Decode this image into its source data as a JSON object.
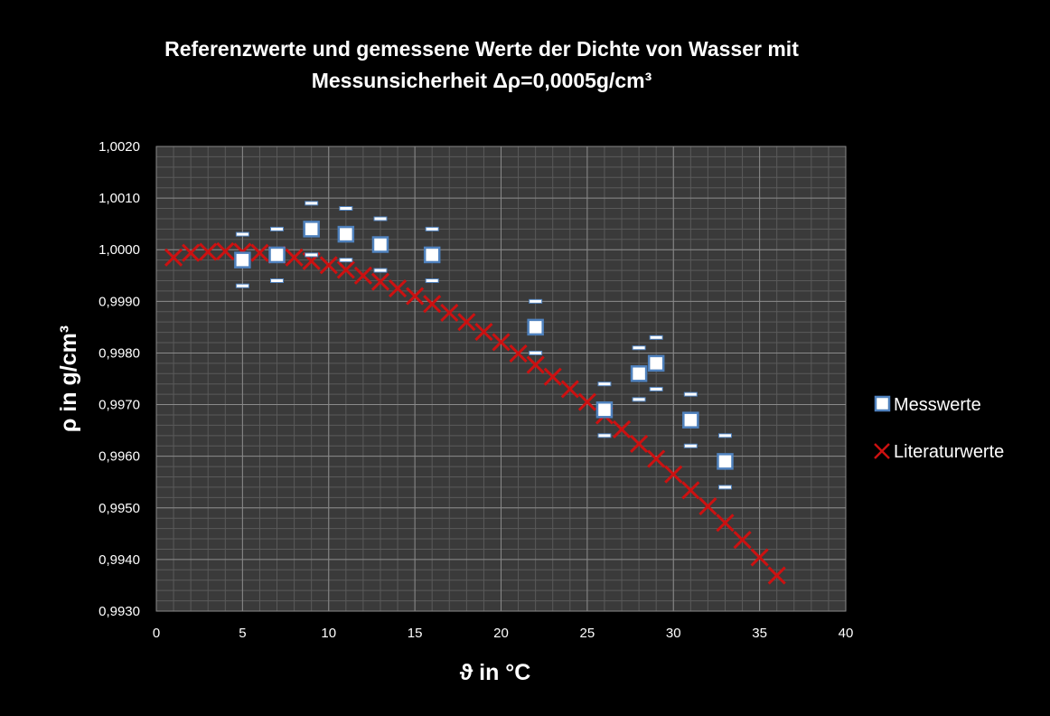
{
  "chart_data": {
    "type": "scatter",
    "title_lines": [
      "Referenzwerte und gemessene Werte der Dichte von Wasser mit",
      "Messunsicherheit Δρ=0,0005g/cm³"
    ],
    "xlabel": "ϑ in °C",
    "ylabel": "ρ in g/cm³",
    "xlim": [
      0,
      40
    ],
    "ylim": [
      0.993,
      1.002
    ],
    "x_ticks": [
      0,
      5,
      10,
      15,
      20,
      25,
      30,
      35,
      40
    ],
    "x_tick_labels": [
      "0",
      "5",
      "10",
      "15",
      "20",
      "25",
      "30",
      "35",
      "40"
    ],
    "y_ticks": [
      0.993,
      0.994,
      0.995,
      0.996,
      0.997,
      0.998,
      0.999,
      1.0,
      1.001,
      1.002
    ],
    "y_tick_labels": [
      "0,9930",
      "0,9940",
      "0,9950",
      "0,9960",
      "0,9970",
      "0,9980",
      "0,9990",
      "1,0000",
      "1,0010",
      "1,0020"
    ],
    "grid": true,
    "legend_position": "right",
    "error": 0.0005,
    "series": [
      {
        "name": "Messwerte",
        "marker": "square",
        "color": "#ffffff",
        "edge_color": "#4f81bd",
        "x": [
          5,
          7,
          9,
          11,
          13,
          16,
          22,
          26,
          28,
          29,
          31,
          33
        ],
        "y": [
          0.9998,
          0.9999,
          1.0004,
          1.0003,
          1.0001,
          0.9999,
          0.9985,
          0.9969,
          0.9976,
          0.9978,
          0.9967,
          0.9959
        ]
      },
      {
        "name": "Literaturwerte",
        "marker": "x",
        "color": "#cc1111",
        "x": [
          1,
          2,
          3,
          4,
          5,
          6,
          7,
          8,
          9,
          10,
          11,
          12,
          13,
          14,
          15,
          16,
          17,
          18,
          19,
          20,
          21,
          22,
          23,
          24,
          25,
          26,
          27,
          28,
          29,
          30,
          31,
          32,
          33,
          34,
          35,
          36
        ],
        "y": [
          0.99985,
          0.99994,
          0.99996,
          0.99997,
          0.99996,
          0.99994,
          0.9999,
          0.99985,
          0.99978,
          0.9997,
          0.99961,
          0.9995,
          0.99938,
          0.99925,
          0.9991,
          0.99895,
          0.99878,
          0.9986,
          0.99841,
          0.99821,
          0.99799,
          0.99777,
          0.99754,
          0.9973,
          0.99705,
          0.99679,
          0.99652,
          0.99624,
          0.99595,
          0.99565,
          0.99534,
          0.99503,
          0.99471,
          0.99438,
          0.99404,
          0.99369
        ]
      }
    ]
  }
}
